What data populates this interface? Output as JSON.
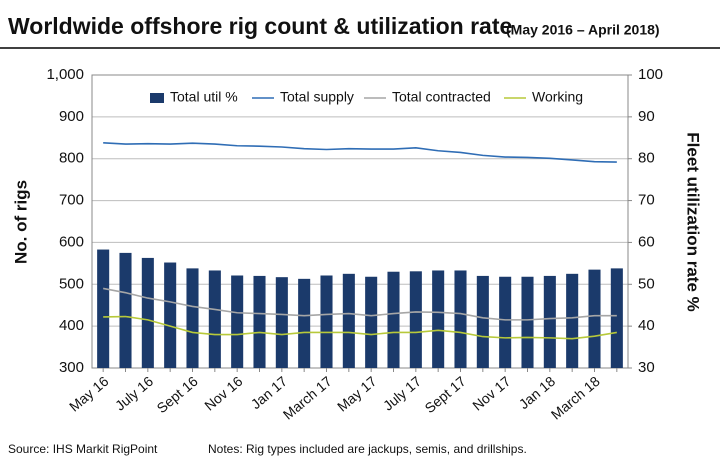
{
  "chart_data": {
    "type": "bar",
    "title": "Worldwide offshore rig count & utilization rate",
    "subtitle": "(May 2016 – April 2018)",
    "y_label": "No. of rigs",
    "y2_label": "Fleet utilization rate %",
    "source": "Source: IHS Markit RigPoint",
    "notes": "Notes: Rig types included are jackups, semis, and drillships.",
    "categories": [
      "May 16",
      null,
      "July 16",
      null,
      "Sept 16",
      null,
      "Nov 16",
      null,
      "Jan 17",
      null,
      "March 17",
      null,
      "May 17",
      null,
      "July 17",
      null,
      "Sept 17",
      null,
      "Nov 17",
      null,
      "Jan 18",
      null,
      "March 18",
      null
    ],
    "ylim": [
      300,
      1000
    ],
    "yticks": [
      300,
      400,
      500,
      600,
      700,
      800,
      900,
      {
        "value": 1000,
        "label": "1,000"
      }
    ],
    "y2lim": [
      30,
      100
    ],
    "y2ticks": [
      30,
      40,
      50,
      60,
      70,
      80,
      90,
      100
    ],
    "grid": true,
    "legend": "top",
    "series": [
      {
        "name": "Total util %",
        "type": "bar",
        "axis": "y2",
        "color": "#1b3a6b",
        "values": [
          58.3,
          57.5,
          56.3,
          55.2,
          53.8,
          53.3,
          52.1,
          52.0,
          51.7,
          51.3,
          52.1,
          52.5,
          51.8,
          53.0,
          53.1,
          53.3,
          53.3,
          52.0,
          51.8,
          51.8,
          52.0,
          52.5,
          53.5,
          53.8
        ]
      },
      {
        "name": "Total supply",
        "type": "line",
        "color": "#2f6db5",
        "values": [
          838,
          835,
          836,
          835,
          837,
          835,
          831,
          830,
          828,
          824,
          822,
          824,
          823,
          823,
          826,
          819,
          815,
          808,
          804,
          803,
          801,
          797,
          793,
          792
        ]
      },
      {
        "name": "Total contracted",
        "type": "line",
        "color": "#a6a6a6",
        "values": [
          490,
          480,
          467,
          458,
          447,
          440,
          432,
          430,
          428,
          425,
          428,
          430,
          425,
          430,
          434,
          433,
          430,
          420,
          415,
          415,
          418,
          420,
          425,
          425
        ]
      },
      {
        "name": "Working",
        "type": "line",
        "color": "#b7c93a",
        "values": [
          422,
          423,
          415,
          400,
          385,
          380,
          380,
          385,
          380,
          385,
          385,
          385,
          380,
          385,
          385,
          390,
          385,
          375,
          372,
          373,
          372,
          370,
          376,
          385
        ]
      }
    ]
  }
}
